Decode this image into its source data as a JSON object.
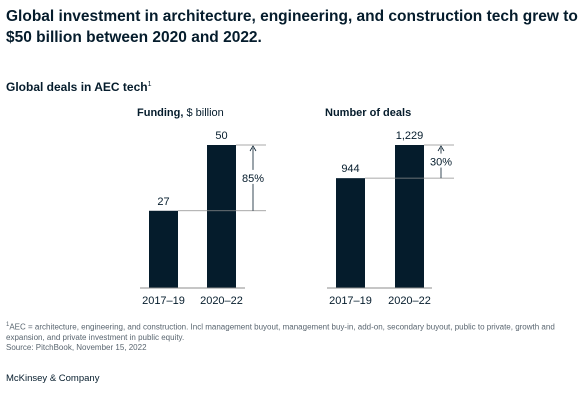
{
  "headline": "Global investment in architecture, engineering, and construction tech grew to $50 billion between 2020 and 2022.",
  "subtitle": {
    "text": "Global deals in AEC tech",
    "footnote_marker": "1"
  },
  "footnote": {
    "marker": "1",
    "text": "AEC = architecture, engineering, and construction. Incl management buyout, management buy-in, add-on, secondary buyout, public to private, growth and expansion, and private investment in public equity.",
    "source": "Source: PitchBook, November 15, 2022"
  },
  "brand": "McKinsey & Company",
  "colors": {
    "bar": "#051c2c",
    "axis": "#8c8c8c",
    "text": "#051c2c",
    "muted": "#5a6670"
  },
  "chart_data": [
    {
      "type": "bar",
      "title_bold": "Funding,",
      "title_rest": " $ billion",
      "categories": [
        "2017–19",
        "2020–22"
      ],
      "values": [
        27,
        50
      ],
      "value_labels": [
        "27",
        "50"
      ],
      "change_label": "85%",
      "ylim": [
        0,
        50
      ],
      "grid": false
    },
    {
      "type": "bar",
      "title_bold": "Number of deals",
      "title_rest": "",
      "categories": [
        "2017–19",
        "2020–22"
      ],
      "values": [
        944,
        1229
      ],
      "value_labels": [
        "944",
        "1,229"
      ],
      "change_label": "30%",
      "ylim": [
        0,
        1229
      ],
      "grid": false
    }
  ]
}
